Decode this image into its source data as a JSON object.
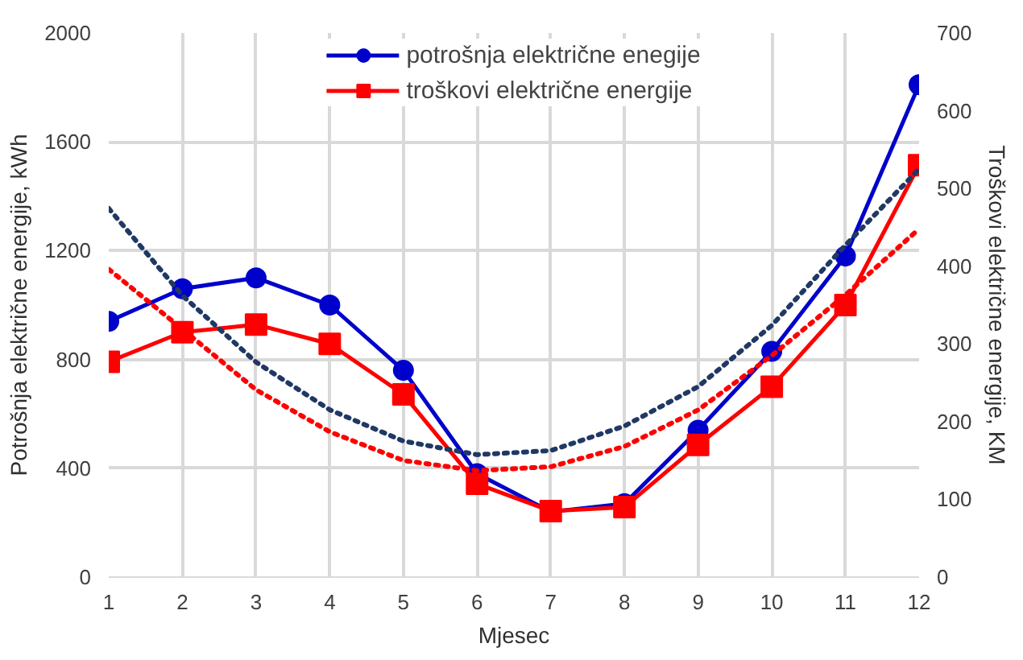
{
  "chart_data": {
    "type": "line",
    "xlabel": "Mjesec",
    "ylabel": "Potrošnja električne energije, kWh",
    "y2label": "Troškovi električne energije, KM",
    "x": [
      1,
      2,
      3,
      4,
      5,
      6,
      7,
      8,
      9,
      10,
      11,
      12
    ],
    "series": [
      {
        "name": "potrošnja električne enegije",
        "color": "#0000cc",
        "marker": "circle",
        "values": [
          940,
          1060,
          1100,
          1000,
          760,
          380,
          240,
          270,
          540,
          830,
          1180,
          1810
        ]
      },
      {
        "name": "troškovi električne energije",
        "color": "#ff0000",
        "marker": "square",
        "axis": "y2",
        "values": [
          277,
          315,
          325,
          300,
          235,
          120,
          85,
          90,
          170,
          245,
          350,
          530
        ]
      },
      {
        "color": "#203864",
        "marker": "none",
        "line_style": "dotted",
        "values": [
          1355,
          1035,
          790,
          615,
          500,
          450,
          465,
          555,
          700,
          925,
          1220,
          1500
        ]
      },
      {
        "color": "#ff0000",
        "marker": "none",
        "line_style": "dotted",
        "axis": "y2",
        "values": [
          396,
          319,
          241,
          187,
          150,
          137,
          142,
          168,
          215,
          285,
          363,
          448
        ]
      }
    ],
    "xlim": [
      1,
      12
    ],
    "xticks": [
      1,
      2,
      3,
      4,
      5,
      6,
      7,
      8,
      9,
      10,
      11,
      12
    ],
    "ylim": [
      0,
      2000
    ],
    "yticks": [
      0,
      400,
      800,
      1200,
      1600,
      2000
    ],
    "y2lim": [
      0,
      700
    ],
    "y2ticks": [
      0,
      100,
      200,
      300,
      400,
      500,
      600,
      700
    ],
    "grid": true,
    "legend": "top"
  }
}
